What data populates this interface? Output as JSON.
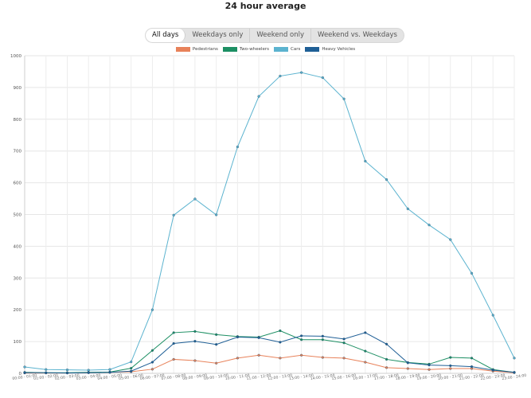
{
  "header": {
    "title": "24 hour average"
  },
  "tabs": [
    {
      "label": "All days",
      "active": true
    },
    {
      "label": "Weekdays only",
      "active": false
    },
    {
      "label": "Weekend only",
      "active": false
    },
    {
      "label": "Weekend vs. Weekdays",
      "active": false
    }
  ],
  "chart_data": {
    "type": "line",
    "title": "24 hour average",
    "xlabel": "",
    "ylabel": "",
    "ylim": [
      0,
      1000
    ],
    "yticks": [
      0,
      100,
      200,
      300,
      400,
      500,
      600,
      700,
      800,
      900,
      1000
    ],
    "grid": true,
    "legend_position": "top",
    "categories": [
      "00:00 - 01:00",
      "01:00 - 02:00",
      "02:00 - 03:00",
      "03:00 - 04:00",
      "04:00 - 05:00",
      "05:00 - 06:00",
      "06:00 - 07:00",
      "07:00 - 08:00",
      "08:00 - 09:00",
      "09:00 - 10:00",
      "10:00 - 11:00",
      "11:00 - 12:00",
      "12:00 - 13:00",
      "13:00 - 14:00",
      "14:00 - 15:00",
      "15:00 - 16:00",
      "16:00 - 17:00",
      "17:00 - 18:00",
      "18:00 - 19:00",
      "19:00 - 20:00",
      "20:00 - 21:00",
      "21:00 - 22:00",
      "22:00 - 23:00",
      "23:00 - 24:00"
    ],
    "series": [
      {
        "name": "Pedestrians",
        "color": "#e8825a",
        "values": [
          1,
          1,
          1,
          2,
          3,
          5,
          13,
          44,
          40,
          32,
          48,
          57,
          48,
          57,
          50,
          48,
          35,
          18,
          15,
          12,
          15,
          15,
          7,
          2
        ]
      },
      {
        "name": "Two-wheelers",
        "color": "#1c8f63",
        "values": [
          3,
          2,
          2,
          3,
          4,
          16,
          72,
          128,
          132,
          122,
          116,
          114,
          134,
          106,
          106,
          96,
          70,
          44,
          34,
          29,
          50,
          48,
          12,
          3
        ]
      },
      {
        "name": "Cars",
        "color": "#5bb3cf",
        "values": [
          20,
          12,
          11,
          10,
          12,
          36,
          200,
          498,
          549,
          499,
          713,
          872,
          936,
          947,
          931,
          864,
          668,
          610,
          518,
          467,
          421,
          315,
          183,
          48
        ]
      },
      {
        "name": "Heavy Vehicles",
        "color": "#1f5f96",
        "values": [
          2,
          2,
          1,
          2,
          3,
          7,
          35,
          94,
          101,
          91,
          114,
          112,
          98,
          118,
          117,
          108,
          128,
          92,
          33,
          26,
          24,
          21,
          10,
          3
        ]
      }
    ]
  }
}
